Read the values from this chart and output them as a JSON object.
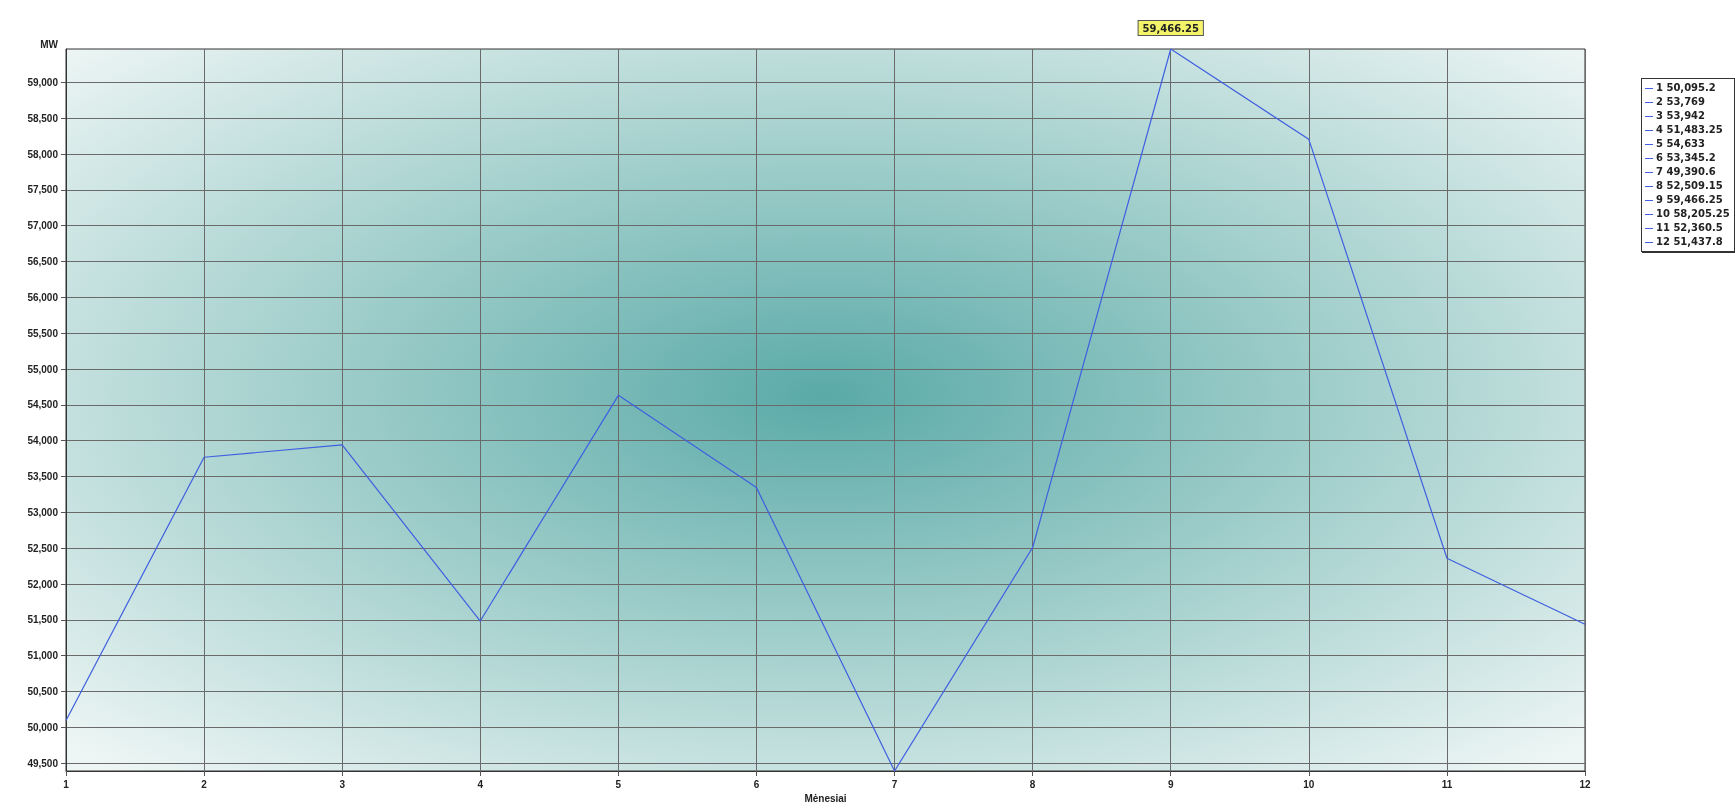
{
  "chart_data": {
    "type": "line",
    "xlabel": "Mėnesiai",
    "ylabel": "MW",
    "categories": [
      "1",
      "2",
      "3",
      "4",
      "5",
      "6",
      "7",
      "8",
      "9",
      "10",
      "11",
      "12"
    ],
    "series": [
      {
        "color": "#3f5fe0",
        "values": [
          50095.2,
          53769,
          53942,
          51483.25,
          54633,
          53345.2,
          49390.6,
          52509.15,
          59466.25,
          58205.25,
          52360.5,
          51437.8
        ]
      }
    ],
    "ylim": [
      49390.6,
      59466.25
    ],
    "yticks": [
      {
        "value": 49500,
        "label": "49,500"
      },
      {
        "value": 50000,
        "label": "50,000"
      },
      {
        "value": 50500,
        "label": "50,500"
      },
      {
        "value": 51000,
        "label": "51,000"
      },
      {
        "value": 51500,
        "label": "51,500"
      },
      {
        "value": 52000,
        "label": "52,000"
      },
      {
        "value": 52500,
        "label": "52,500"
      },
      {
        "value": 53000,
        "label": "53,000"
      },
      {
        "value": 53500,
        "label": "53,500"
      },
      {
        "value": 54000,
        "label": "54,000"
      },
      {
        "value": 54500,
        "label": "54,500"
      },
      {
        "value": 55000,
        "label": "55,000"
      },
      {
        "value": 55500,
        "label": "55,500"
      },
      {
        "value": 56000,
        "label": "56,000"
      },
      {
        "value": 56500,
        "label": "56,500"
      },
      {
        "value": 57000,
        "label": "57,000"
      },
      {
        "value": 57500,
        "label": "57,500"
      },
      {
        "value": 58000,
        "label": "58,000"
      },
      {
        "value": 58500,
        "label": "58,500"
      },
      {
        "value": 59000,
        "label": "59,000"
      }
    ],
    "grid": true,
    "marker": "none",
    "line_style": "solid",
    "annotations": [
      {
        "text": "59,466.25",
        "x": "9",
        "y": 59466.25
      },
      "1 50,095.2",
      "2 53,769",
      "3 53,942",
      "4 51,483.25",
      "5 54,633",
      "6 53,345.2",
      "7 49,390.6",
      "8 52,509.15",
      "9 59,466.25",
      "10 58,205.25",
      "11 52,360.5",
      "12 51,437.8"
    ]
  }
}
